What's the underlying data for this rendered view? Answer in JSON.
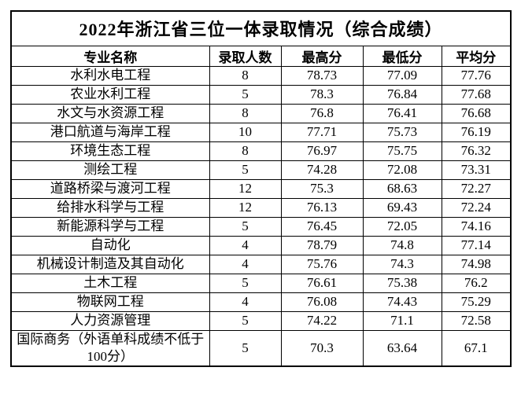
{
  "title": "2022年浙江省三位一体录取情况（综合成绩）",
  "table": {
    "headers": [
      "专业名称",
      "录取人数",
      "最高分",
      "最低分",
      "平均分"
    ],
    "rows": [
      {
        "major": "水利水电工程",
        "admitted": "8",
        "max": "78.73",
        "min": "77.09",
        "avg": "77.76"
      },
      {
        "major": "农业水利工程",
        "admitted": "5",
        "max": "78.3",
        "min": "76.84",
        "avg": "77.68"
      },
      {
        "major": "水文与水资源工程",
        "admitted": "8",
        "max": "76.8",
        "min": "76.41",
        "avg": "76.68"
      },
      {
        "major": "港口航道与海岸工程",
        "admitted": "10",
        "max": "77.71",
        "min": "75.73",
        "avg": "76.19"
      },
      {
        "major": "环境生态工程",
        "admitted": "8",
        "max": "76.97",
        "min": "75.75",
        "avg": "76.32"
      },
      {
        "major": "测绘工程",
        "admitted": "5",
        "max": "74.28",
        "min": "72.08",
        "avg": "73.31"
      },
      {
        "major": "道路桥梁与渡河工程",
        "admitted": "12",
        "max": "75.3",
        "min": "68.63",
        "avg": "72.27"
      },
      {
        "major": "给排水科学与工程",
        "admitted": "12",
        "max": "76.13",
        "min": "69.43",
        "avg": "72.24"
      },
      {
        "major": "新能源科学与工程",
        "admitted": "5",
        "max": "76.45",
        "min": "72.05",
        "avg": "74.16"
      },
      {
        "major": "自动化",
        "admitted": "4",
        "max": "78.79",
        "min": "74.8",
        "avg": "77.14"
      },
      {
        "major": "机械设计制造及其自动化",
        "admitted": "4",
        "max": "75.76",
        "min": "74.3",
        "avg": "74.98"
      },
      {
        "major": "土木工程",
        "admitted": "5",
        "max": "76.61",
        "min": "75.38",
        "avg": "76.2"
      },
      {
        "major": "物联网工程",
        "admitted": "4",
        "max": "76.08",
        "min": "74.43",
        "avg": "75.29"
      },
      {
        "major": "人力资源管理",
        "admitted": "5",
        "max": "74.22",
        "min": "71.1",
        "avg": "72.58"
      },
      {
        "major": "国际商务（外语单科成绩不低于100分）",
        "admitted": "5",
        "max": "70.3",
        "min": "63.64",
        "avg": "67.1"
      }
    ]
  },
  "colors": {
    "background": "#ffffff",
    "border": "#000000",
    "text": "#000000"
  }
}
